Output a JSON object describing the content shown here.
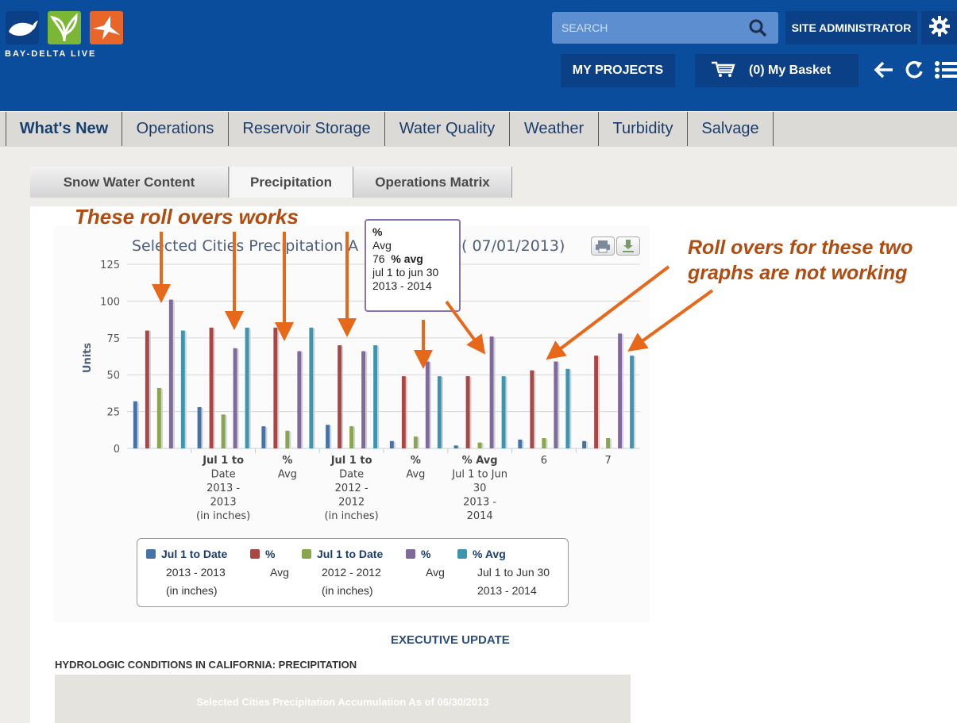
{
  "header": {
    "brand_text": "BAY-DELTA LIVE",
    "search_placeholder": "SEARCH",
    "site_admin_label": "SITE ADMINISTRATOR",
    "my_projects_label": "MY PROJECTS",
    "basket_label": "(0) My Basket",
    "colors": {
      "bar": "#0a4d9c",
      "button": "#0b3f86",
      "search": "#5d8ed0"
    },
    "icons": [
      "whale-logo-icon",
      "leaf-logo-icon",
      "bird-logo-icon",
      "search-icon",
      "gear-icon",
      "cart-icon",
      "back-arrow-icon",
      "refresh-icon",
      "menu-list-icon"
    ]
  },
  "main_tabs": [
    {
      "label": "What's New",
      "active": true
    },
    {
      "label": "Operations"
    },
    {
      "label": "Reservoir Storage"
    },
    {
      "label": "Water Quality"
    },
    {
      "label": "Weather"
    },
    {
      "label": "Turbidity"
    },
    {
      "label": "Salvage"
    }
  ],
  "sub_tabs": [
    {
      "label": "Snow Water Content"
    },
    {
      "label": "Precipitation",
      "active": true
    },
    {
      "label": "Operations Matrix"
    }
  ],
  "annotations": {
    "works": "These roll overs works",
    "not_working_line1": "Roll overs for these two",
    "not_working_line2": "graphs are not working",
    "color": "#e8681a"
  },
  "tooltip": {
    "line1": "%",
    "line2": "Avg",
    "value": "76",
    "line3_suffix": "% avg",
    "line4": "jul 1 to jun 30",
    "line5": "2013 - 2014"
  },
  "chart_data": {
    "type": "bar",
    "title": "Selected Cities Precipitation A",
    "title_tail": "( 07/01/2013)",
    "ylabel": "Units",
    "ylim": [
      0,
      125
    ],
    "yticks": [
      "0",
      "25",
      "50",
      "75",
      "100",
      "125"
    ],
    "category_labels": [
      [],
      [
        "Jul 1 to",
        "Date",
        "2013 -",
        "2013",
        "(in inches)"
      ],
      [
        "%",
        "Avg"
      ],
      [
        "Jul 1 to",
        "Date",
        "2012 -",
        "2012",
        "(in inches)"
      ],
      [
        "%",
        "Avg"
      ],
      [
        "% Avg",
        "Jul 1 to Jun",
        "30",
        "2013 -",
        "2014"
      ],
      [
        "6"
      ],
      [
        "7"
      ]
    ],
    "series": [
      {
        "name": "Jul 1 to Date 2013 - 2013 (in inches)",
        "color": "#4572a7",
        "values": [
          32,
          28,
          15,
          16,
          5,
          2,
          6,
          5
        ]
      },
      {
        "name": "% Avg",
        "color": "#aa4643",
        "values": [
          80,
          82,
          82,
          70,
          49,
          49,
          53,
          63
        ]
      },
      {
        "name": "Jul 1 to Date 2012 - 2012 (in inches)",
        "color": "#89a54e",
        "values": [
          41,
          23,
          12,
          15,
          8,
          4,
          7,
          7
        ]
      },
      {
        "name": "% Avg",
        "color": "#80699b",
        "values": [
          101,
          68,
          66,
          66,
          59,
          76,
          59,
          78
        ]
      },
      {
        "name": "% Avg Jul 1 to Jun 30 2013 - 2014",
        "color": "#3d96ae",
        "values": [
          80,
          82,
          82,
          70,
          49,
          49,
          54,
          63
        ]
      }
    ],
    "legend": [
      {
        "name": "Jul 1 to Date",
        "sub1": "2013 - 2013",
        "sub2": "(in inches)",
        "color": "#4572a7"
      },
      {
        "name": "%",
        "sub1": "Avg",
        "sub2": "",
        "color": "#aa4643"
      },
      {
        "name": "Jul 1 to Date",
        "sub1": "2012 - 2012",
        "sub2": "(in inches)",
        "color": "#89a54e"
      },
      {
        "name": "%",
        "sub1": "Avg",
        "sub2": "",
        "color": "#80699b"
      },
      {
        "name": "% Avg",
        "sub1": "Jul 1 to Jun 30",
        "sub2": "2013 - 2014",
        "color": "#3d96ae"
      }
    ],
    "grid": true
  },
  "footer": {
    "executive_update": "EXECUTIVE UPDATE",
    "hydrologic_heading": "HYDROLOGIC CONDITIONS IN CALIFORNIA: PRECIPITATION",
    "panel_title": "Selected Cities Precipitation Accumulation As of 06/30/2013"
  }
}
